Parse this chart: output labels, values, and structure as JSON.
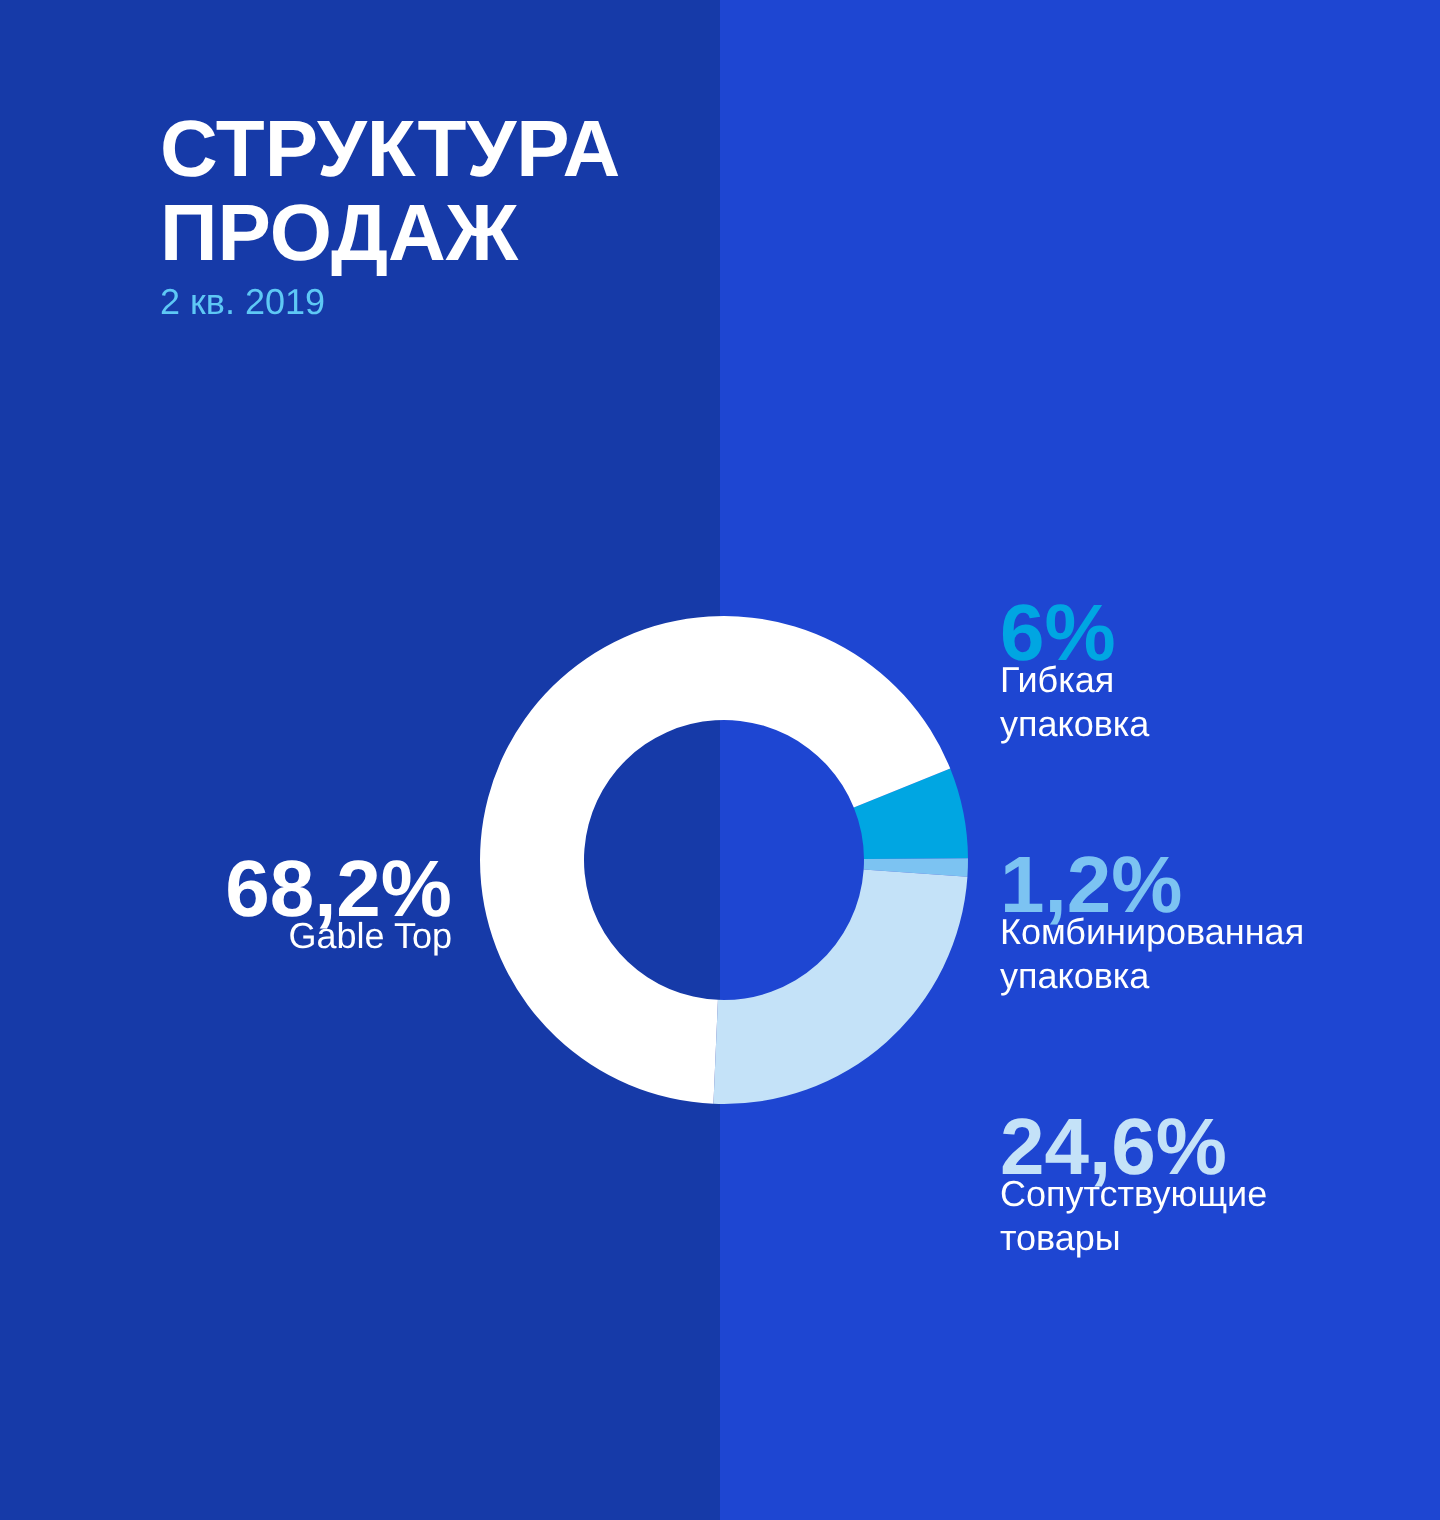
{
  "chart_data": {
    "type": "donut",
    "title": "СТРУКТУРА\nПРОДАЖ",
    "subtitle": "2 кв. 2019",
    "categories": [
      "Гибкая\nупаковка",
      "Комбинированная\nупаковка",
      "Сопутствующие\nтовары",
      "Gable Top"
    ],
    "values": [
      6,
      1.2,
      24.6,
      68.2
    ],
    "value_labels": [
      "6%",
      "1,2%",
      "24,6%",
      "68,2%"
    ],
    "colors": [
      "#00a6e2",
      "#7cc3f2",
      "#c4e2f8",
      "#ffffff"
    ]
  }
}
